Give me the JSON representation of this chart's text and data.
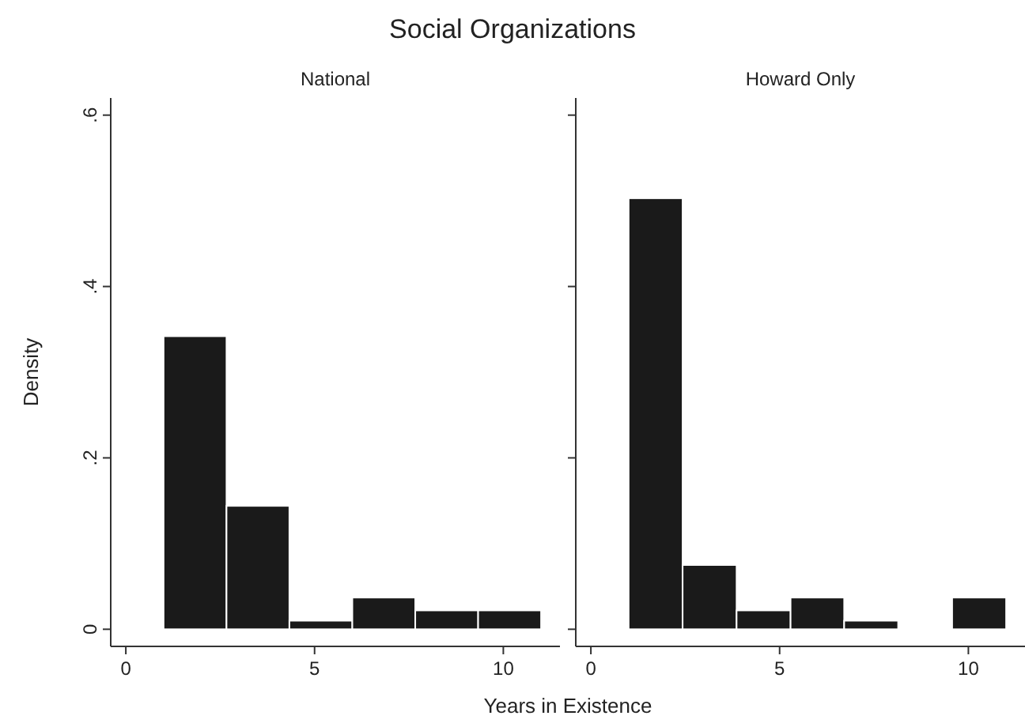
{
  "chart_data": [
    {
      "type": "histogram",
      "title": "Social Organizations",
      "subtitle": "National",
      "xlabel": "Years in Existence",
      "ylabel": "Density",
      "color": "#1a1a1a",
      "bins": [
        1,
        2.667,
        4.333,
        6,
        7.667,
        9.333,
        11
      ],
      "values": [
        0.342,
        0.144,
        0.01,
        0.037,
        0.022,
        0.022
      ],
      "xlim": [
        -0.4,
        11.5
      ],
      "xticks": [
        0,
        5,
        10
      ],
      "ylim": [
        -0.02,
        0.62
      ],
      "yticks": [
        0,
        {
          "value": 0.2,
          "label": ".2"
        },
        {
          "value": 0.4,
          "label": ".4"
        },
        {
          "value": 0.6,
          "label": ".6"
        }
      ],
      "grid": false
    },
    {
      "type": "histogram",
      "subtitle": "Howard Only",
      "color": "#1a1a1a",
      "bins": [
        1,
        2.43,
        3.86,
        5.29,
        6.71,
        8.14,
        9.57,
        11
      ],
      "values": [
        0.503,
        0.075,
        0.022,
        0.037,
        0.01,
        0,
        0.037
      ],
      "xlim": [
        -0.4,
        11.5
      ],
      "xticks": [
        0,
        5,
        10
      ],
      "ylim": [
        -0.02,
        0.62
      ],
      "yticks": [
        {
          "value": 0,
          "label": null
        },
        {
          "value": 0.2,
          "label": null
        },
        {
          "value": 0.4,
          "label": null
        },
        {
          "value": 0.6,
          "label": null
        }
      ],
      "grid": false,
      "tick_labels": "x"
    }
  ]
}
